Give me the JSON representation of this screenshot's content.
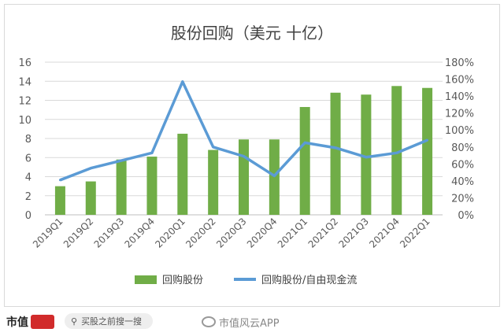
{
  "chart_data": {
    "type": "bar+line",
    "title": "股份回购（美元 十亿）",
    "categories": [
      "2019Q1",
      "2019Q2",
      "2019Q3",
      "2019Q4",
      "2020Q1",
      "2020Q2",
      "2020Q3",
      "2020Q4",
      "2021Q1",
      "2021Q2",
      "2021Q3",
      "2021Q4",
      "2022Q1"
    ],
    "series": [
      {
        "name": "回购股份",
        "type": "bar",
        "axis": "left",
        "color": "#70ad47",
        "values": [
          3.0,
          3.5,
          5.8,
          6.1,
          8.5,
          6.8,
          7.9,
          7.9,
          11.3,
          12.8,
          12.6,
          13.5,
          13.3
        ]
      },
      {
        "name": "回购股份/自由现金流",
        "type": "line",
        "axis": "right",
        "color": "#5b9bd5",
        "values": [
          0.41,
          0.55,
          0.64,
          0.73,
          1.57,
          0.8,
          0.69,
          0.46,
          0.85,
          0.79,
          0.68,
          0.73,
          0.88
        ]
      }
    ],
    "left_axis": {
      "min": 0,
      "max": 16,
      "step": 2,
      "ticks": [
        "0",
        "2",
        "4",
        "6",
        "8",
        "10",
        "12",
        "14",
        "16"
      ]
    },
    "right_axis": {
      "min": 0,
      "max": 1.8,
      "step": 0.2,
      "ticks": [
        "0%",
        "20%",
        "40%",
        "60%",
        "80%",
        "100%",
        "120%",
        "140%",
        "160%",
        "180%"
      ]
    },
    "grid": true,
    "legend": "bottom"
  },
  "footer": {
    "brand": "市值",
    "search_placeholder": "买股之前搜一搜",
    "weibo_watermark": "市值风云APP"
  }
}
